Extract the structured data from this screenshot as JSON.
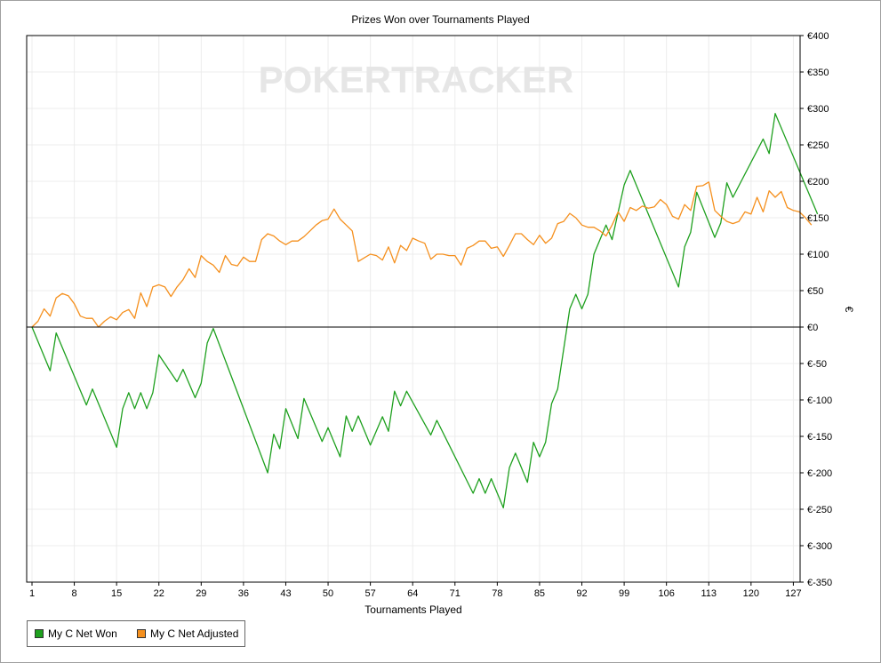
{
  "chart_data": {
    "type": "line",
    "title": "Prizes Won over Tournaments Played",
    "xlabel": "Tournaments Played",
    "ylabel": "€",
    "watermark": "POKERTRACKER",
    "xlim": [
      1,
      127
    ],
    "ylim": [
      -350,
      400
    ],
    "x_ticks": [
      1,
      8,
      15,
      22,
      29,
      36,
      43,
      50,
      57,
      64,
      71,
      78,
      85,
      92,
      99,
      106,
      113,
      120,
      127
    ],
    "y_ticks": [
      {
        "v": 400,
        "label": "€400"
      },
      {
        "v": 350,
        "label": "€350"
      },
      {
        "v": 300,
        "label": "€300"
      },
      {
        "v": 250,
        "label": "€250"
      },
      {
        "v": 200,
        "label": "€200"
      },
      {
        "v": 150,
        "label": "€150"
      },
      {
        "v": 100,
        "label": "€100"
      },
      {
        "v": 50,
        "label": "€50"
      },
      {
        "v": 0,
        "label": "€0"
      },
      {
        "v": -50,
        "label": "€-50"
      },
      {
        "v": -100,
        "label": "€-100"
      },
      {
        "v": -150,
        "label": "€-150"
      },
      {
        "v": -200,
        "label": "€-200"
      },
      {
        "v": -250,
        "label": "€-250"
      },
      {
        "v": -300,
        "label": "€-300"
      },
      {
        "v": -350,
        "label": "€-350"
      }
    ],
    "grid": true,
    "legend_position": "bottom-left",
    "series": [
      {
        "name": "My C Net Won",
        "color": "#1ea01e",
        "points": [
          [
            1,
            0
          ],
          [
            4,
            -60
          ],
          [
            5,
            -8
          ],
          [
            10,
            -107
          ],
          [
            11,
            -85
          ],
          [
            15,
            -165
          ],
          [
            16,
            -112
          ],
          [
            17,
            -90
          ],
          [
            18,
            -112
          ],
          [
            19,
            -90
          ],
          [
            20,
            -112
          ],
          [
            21,
            -90
          ],
          [
            22,
            -38
          ],
          [
            25,
            -75
          ],
          [
            26,
            -58
          ],
          [
            28,
            -97
          ],
          [
            29,
            -77
          ],
          [
            30,
            -22
          ],
          [
            31,
            -2
          ],
          [
            40,
            -200
          ],
          [
            41,
            -147
          ],
          [
            42,
            -167
          ],
          [
            43,
            -112
          ],
          [
            45,
            -153
          ],
          [
            46,
            -98
          ],
          [
            49,
            -157
          ],
          [
            50,
            -138
          ],
          [
            52,
            -178
          ],
          [
            53,
            -122
          ],
          [
            54,
            -143
          ],
          [
            55,
            -122
          ],
          [
            57,
            -162
          ],
          [
            59,
            -123
          ],
          [
            60,
            -143
          ],
          [
            61,
            -88
          ],
          [
            62,
            -108
          ],
          [
            63,
            -88
          ],
          [
            67,
            -148
          ],
          [
            68,
            -128
          ],
          [
            74,
            -228
          ],
          [
            75,
            -208
          ],
          [
            76,
            -228
          ],
          [
            77,
            -208
          ],
          [
            79,
            -248
          ],
          [
            80,
            -193
          ],
          [
            81,
            -173
          ],
          [
            83,
            -213
          ],
          [
            84,
            -158
          ],
          [
            85,
            -178
          ],
          [
            86,
            -158
          ],
          [
            87,
            -105
          ],
          [
            88,
            -85
          ],
          [
            89,
            -30
          ],
          [
            90,
            25
          ],
          [
            91,
            45
          ],
          [
            92,
            25
          ],
          [
            93,
            45
          ],
          [
            94,
            100
          ],
          [
            96,
            140
          ],
          [
            97,
            120
          ],
          [
            99,
            195
          ],
          [
            100,
            215
          ],
          [
            108,
            55
          ],
          [
            109,
            110
          ],
          [
            110,
            130
          ],
          [
            111,
            185
          ],
          [
            114,
            123
          ],
          [
            115,
            143
          ],
          [
            116,
            198
          ],
          [
            117,
            178
          ],
          [
            122,
            258
          ],
          [
            123,
            238
          ],
          [
            124,
            293
          ],
          [
            131,
            155
          ]
        ]
      },
      {
        "name": "My C Net Adjusted",
        "color": "#f5901e",
        "points": [
          [
            1,
            0
          ],
          [
            2,
            8
          ],
          [
            3,
            25
          ],
          [
            4,
            15
          ],
          [
            5,
            40
          ],
          [
            6,
            46
          ],
          [
            7,
            43
          ],
          [
            8,
            32
          ],
          [
            9,
            15
          ],
          [
            10,
            12
          ],
          [
            11,
            12
          ],
          [
            12,
            0
          ],
          [
            13,
            8
          ],
          [
            14,
            14
          ],
          [
            15,
            10
          ],
          [
            16,
            20
          ],
          [
            17,
            24
          ],
          [
            18,
            12
          ],
          [
            19,
            47
          ],
          [
            20,
            28
          ],
          [
            21,
            55
          ],
          [
            22,
            58
          ],
          [
            23,
            55
          ],
          [
            24,
            42
          ],
          [
            25,
            55
          ],
          [
            26,
            65
          ],
          [
            27,
            80
          ],
          [
            28,
            68
          ],
          [
            29,
            98
          ],
          [
            30,
            90
          ],
          [
            31,
            85
          ],
          [
            32,
            75
          ],
          [
            33,
            98
          ],
          [
            34,
            86
          ],
          [
            35,
            84
          ],
          [
            36,
            96
          ],
          [
            37,
            90
          ],
          [
            38,
            90
          ],
          [
            39,
            120
          ],
          [
            40,
            128
          ],
          [
            41,
            125
          ],
          [
            42,
            118
          ],
          [
            43,
            113
          ],
          [
            44,
            118
          ],
          [
            45,
            118
          ],
          [
            46,
            124
          ],
          [
            47,
            132
          ],
          [
            48,
            140
          ],
          [
            49,
            146
          ],
          [
            50,
            148
          ],
          [
            51,
            162
          ],
          [
            52,
            148
          ],
          [
            53,
            140
          ],
          [
            54,
            132
          ],
          [
            55,
            90
          ],
          [
            56,
            95
          ],
          [
            57,
            100
          ],
          [
            58,
            98
          ],
          [
            59,
            92
          ],
          [
            60,
            110
          ],
          [
            61,
            88
          ],
          [
            62,
            112
          ],
          [
            63,
            105
          ],
          [
            64,
            122
          ],
          [
            65,
            118
          ],
          [
            66,
            115
          ],
          [
            67,
            93
          ],
          [
            68,
            100
          ],
          [
            69,
            100
          ],
          [
            70,
            98
          ],
          [
            71,
            98
          ],
          [
            72,
            85
          ],
          [
            73,
            108
          ],
          [
            74,
            112
          ],
          [
            75,
            118
          ],
          [
            76,
            118
          ],
          [
            77,
            108
          ],
          [
            78,
            110
          ],
          [
            79,
            97
          ],
          [
            80,
            112
          ],
          [
            81,
            128
          ],
          [
            82,
            128
          ],
          [
            83,
            120
          ],
          [
            84,
            113
          ],
          [
            85,
            126
          ],
          [
            86,
            115
          ],
          [
            87,
            122
          ],
          [
            88,
            142
          ],
          [
            89,
            145
          ],
          [
            90,
            156
          ],
          [
            91,
            150
          ],
          [
            92,
            140
          ],
          [
            93,
            137
          ],
          [
            94,
            137
          ],
          [
            95,
            132
          ],
          [
            96,
            125
          ],
          [
            97,
            140
          ],
          [
            98,
            158
          ],
          [
            99,
            145
          ],
          [
            100,
            164
          ],
          [
            101,
            160
          ],
          [
            102,
            166
          ],
          [
            103,
            163
          ],
          [
            104,
            165
          ],
          [
            105,
            175
          ],
          [
            106,
            168
          ],
          [
            107,
            152
          ],
          [
            108,
            148
          ],
          [
            109,
            168
          ],
          [
            110,
            160
          ],
          [
            111,
            193
          ],
          [
            112,
            194
          ],
          [
            113,
            199
          ],
          [
            114,
            160
          ],
          [
            115,
            152
          ],
          [
            116,
            145
          ],
          [
            117,
            142
          ],
          [
            118,
            145
          ],
          [
            119,
            158
          ],
          [
            120,
            155
          ],
          [
            121,
            178
          ],
          [
            122,
            158
          ],
          [
            123,
            187
          ],
          [
            124,
            178
          ],
          [
            125,
            186
          ],
          [
            126,
            164
          ],
          [
            127,
            160
          ],
          [
            128,
            158
          ],
          [
            129,
            150
          ],
          [
            130,
            140
          ]
        ]
      }
    ]
  }
}
